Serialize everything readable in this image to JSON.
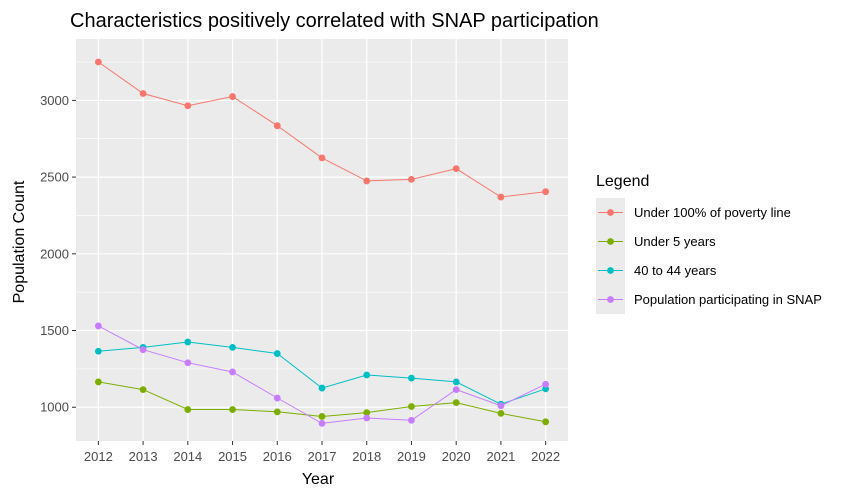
{
  "chart_data": {
    "type": "line",
    "title": "Characteristics positively correlated with SNAP participation",
    "xlabel": "Year",
    "ylabel": "Population Count",
    "x": [
      2012,
      2013,
      2014,
      2015,
      2016,
      2017,
      2018,
      2019,
      2020,
      2021,
      2022
    ],
    "xlim": [
      2011.5,
      2022.5
    ],
    "ylim": [
      780,
      3400
    ],
    "yticks": [
      1000,
      1500,
      2000,
      2500,
      3000
    ],
    "grid": true,
    "legend": {
      "title": "Legend",
      "position": "right"
    },
    "series": [
      {
        "name": "Under 100% of poverty line",
        "color": "#F8766D",
        "values": [
          3250,
          3045,
          2965,
          3025,
          2835,
          2625,
          2475,
          2485,
          2555,
          2370,
          2405
        ]
      },
      {
        "name": "Under 5 years",
        "color": "#7CAE00",
        "values": [
          1165,
          1115,
          985,
          985,
          970,
          940,
          965,
          1005,
          1030,
          960,
          905
        ]
      },
      {
        "name": "40 to 44 years",
        "color": "#00BFC4",
        "values": [
          1365,
          1390,
          1425,
          1390,
          1350,
          1125,
          1210,
          1190,
          1165,
          1020,
          1120
        ]
      },
      {
        "name": "Population participating in SNAP",
        "color": "#C77CFF",
        "values": [
          1530,
          1375,
          1290,
          1230,
          1060,
          895,
          930,
          915,
          1115,
          1010,
          1150
        ]
      }
    ]
  }
}
